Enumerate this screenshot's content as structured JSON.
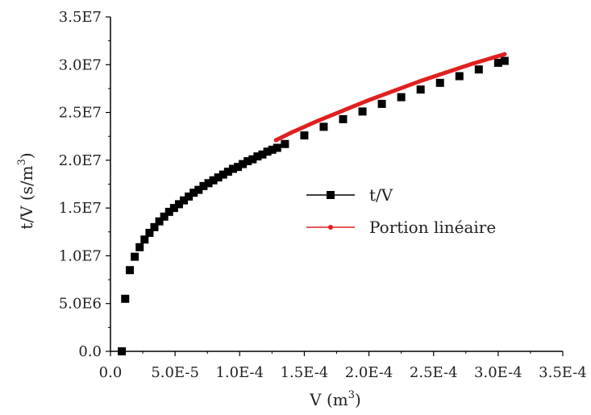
{
  "chart_data": {
    "type": "scatter",
    "xlabel": "V (m",
    "xlabel_sup": "3",
    "xlabel_end": ")",
    "ylabel": "t/V (s/m",
    "ylabel_sup": "3",
    "ylabel_end": ")",
    "xlim": [
      0.0,
      0.00035
    ],
    "ylim": [
      0.0,
      35000000
    ],
    "x_ticks": [
      0.0,
      5e-05,
      0.0001,
      0.00015,
      0.0002,
      0.00025,
      0.0003,
      0.00035
    ],
    "x_tick_labels": [
      "0.0",
      "5.0E-5",
      "1.0E-4",
      "1.5E-4",
      "2.0E-4",
      "2.5E-4",
      "3.0E-4",
      "3.5E-4"
    ],
    "y_ticks": [
      0,
      5000000,
      10000000,
      15000000,
      20000000,
      25000000,
      30000000,
      35000000
    ],
    "y_tick_labels": [
      "0.0",
      "5.0E6",
      "1.0E7",
      "1.5E7",
      "2.0E7",
      "2.5E7",
      "3.0E7",
      "3.5E7"
    ],
    "grid": false,
    "legend_position": "right-center",
    "series": [
      {
        "name": "t/V",
        "marker": "square",
        "color": "#000000",
        "x": [
          8.8e-06,
          1.14e-05,
          1.5e-05,
          1.88e-05,
          2.26e-05,
          2.64e-05,
          3.02e-05,
          3.4e-05,
          3.78e-05,
          4.16e-05,
          4.54e-05,
          4.92e-05,
          5.3e-05,
          5.68e-05,
          6.06e-05,
          6.44e-05,
          6.82e-05,
          7.2e-05,
          7.58e-05,
          7.96e-05,
          8.34e-05,
          8.72e-05,
          9.1e-05,
          9.48e-05,
          9.86e-05,
          0.0001024,
          0.0001062,
          0.00011,
          0.0001138,
          0.0001176,
          0.0001214,
          0.0001252,
          0.000129,
          0.000135,
          0.00015,
          0.000165,
          0.00018,
          0.000195,
          0.00021,
          0.000225,
          0.00024,
          0.000255,
          0.00027,
          0.000285,
          0.0003,
          0.000305
        ],
        "y": [
          0,
          5500000,
          8500000,
          9900000,
          10900000,
          11700000,
          12400000,
          13000000,
          13600000,
          14100000,
          14600000,
          15000000,
          15400000,
          15800000,
          16200000,
          16600000,
          16900000,
          17300000,
          17600000,
          17900000,
          18200000,
          18500000,
          18800000,
          19100000,
          19300000,
          19600000,
          19900000,
          20100000,
          20400000,
          20600000,
          20900000,
          21100000,
          21300000,
          21700000,
          22600000,
          23500000,
          24300000,
          25100000,
          25900000,
          26600000,
          27400000,
          28100000,
          28800000,
          29500000,
          30200000,
          30400000
        ]
      },
      {
        "name": "Portion linéaire",
        "marker": "circle",
        "color": "#e02020",
        "x": [
          0.000128,
          0.00014,
          0.00016,
          0.00018,
          0.0002,
          0.00022,
          0.00024,
          0.00026,
          0.00028,
          0.0003,
          0.000305
        ],
        "y": [
          22100000,
          22900000,
          24100000,
          25200000,
          26300000,
          27300000,
          28300000,
          29200000,
          30100000,
          30900000,
          31100000
        ]
      }
    ]
  }
}
